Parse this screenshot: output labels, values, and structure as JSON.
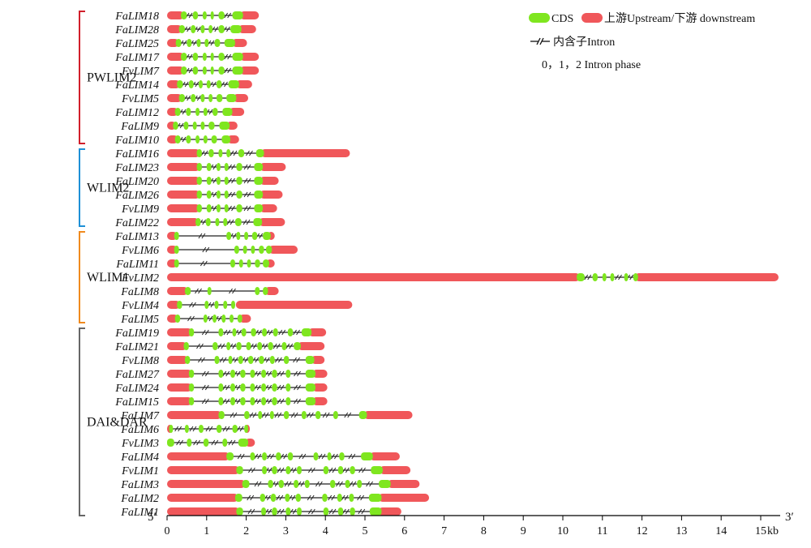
{
  "colors": {
    "cds": "#7FE61F",
    "utr": "#F0575A",
    "intron": "#222222",
    "axis": "#000000"
  },
  "legend": {
    "cds_label": "CDS",
    "utr_label": "上游Upstream/下游 downstream",
    "intron_label": "内含子Intron",
    "phase_label": "0，1，2 Intron phase"
  },
  "axis": {
    "five_prime": "5′",
    "three_prime": "3′",
    "unit": "kb",
    "ticks": [
      "0",
      "1",
      "2",
      "3",
      "4",
      "5",
      "6",
      "7",
      "8",
      "9",
      "10",
      "11",
      "12",
      "13",
      "14",
      "15"
    ]
  },
  "groups": [
    {
      "name": "PWLIM2",
      "color": "#D11F2B",
      "first": 0,
      "last": 9
    },
    {
      "name": "WLIM2",
      "color": "#1E90D6",
      "first": 10,
      "last": 15
    },
    {
      "name": "WLIM1",
      "color": "#F08A1E",
      "first": 16,
      "last": 22
    },
    {
      "name": "DAI&DAR",
      "color": "#666666",
      "first": 23,
      "last": 36
    }
  ],
  "genes": [
    {
      "name": "FaLIM18",
      "up": [
        0,
        0.35
      ],
      "cds": [
        [
          0.35,
          0.5
        ],
        [
          0.65,
          0.78
        ],
        [
          0.9,
          1.0
        ],
        [
          1.1,
          1.18
        ],
        [
          1.3,
          1.45
        ],
        [
          1.65,
          1.92
        ]
      ],
      "down": [
        1.92,
        2.32
      ]
    },
    {
      "name": "FaLIM28",
      "up": [
        0,
        0.3
      ],
      "cds": [
        [
          0.3,
          0.45
        ],
        [
          0.6,
          0.72
        ],
        [
          0.85,
          0.95
        ],
        [
          1.05,
          1.15
        ],
        [
          1.3,
          1.45
        ],
        [
          1.6,
          1.88
        ]
      ],
      "down": [
        1.88,
        2.25
      ]
    },
    {
      "name": "FaLIM25",
      "up": [
        0,
        0.22
      ],
      "cds": [
        [
          0.22,
          0.36
        ],
        [
          0.5,
          0.62
        ],
        [
          0.75,
          0.85
        ],
        [
          0.95,
          1.05
        ],
        [
          1.2,
          1.34
        ],
        [
          1.45,
          1.72
        ]
      ],
      "down": [
        1.72,
        2.02
      ]
    },
    {
      "name": "FaLIM17",
      "up": [
        0,
        0.35
      ],
      "cds": [
        [
          0.35,
          0.5
        ],
        [
          0.65,
          0.78
        ],
        [
          0.9,
          1.0
        ],
        [
          1.1,
          1.18
        ],
        [
          1.3,
          1.45
        ],
        [
          1.65,
          1.92
        ]
      ],
      "down": [
        1.92,
        2.32
      ]
    },
    {
      "name": "FvLIM7",
      "up": [
        0,
        0.35
      ],
      "cds": [
        [
          0.35,
          0.5
        ],
        [
          0.65,
          0.78
        ],
        [
          0.9,
          1.0
        ],
        [
          1.1,
          1.18
        ],
        [
          1.3,
          1.45
        ],
        [
          1.65,
          1.92
        ]
      ],
      "down": [
        1.92,
        2.32
      ]
    },
    {
      "name": "FaLIM14",
      "up": [
        0,
        0.25
      ],
      "cds": [
        [
          0.25,
          0.4
        ],
        [
          0.55,
          0.67
        ],
        [
          0.8,
          0.9
        ],
        [
          1.0,
          1.1
        ],
        [
          1.25,
          1.38
        ],
        [
          1.55,
          1.82
        ]
      ],
      "down": [
        1.82,
        2.15
      ]
    },
    {
      "name": "FvLIM5",
      "up": [
        0,
        0.3
      ],
      "cds": [
        [
          0.3,
          0.45
        ],
        [
          0.6,
          0.72
        ],
        [
          0.85,
          0.95
        ],
        [
          1.05,
          1.15
        ],
        [
          1.25,
          1.4
        ],
        [
          1.5,
          1.75
        ]
      ],
      "down": [
        1.75,
        2.05
      ]
    },
    {
      "name": "FaLIM12",
      "up": [
        0,
        0.2
      ],
      "cds": [
        [
          0.2,
          0.34
        ],
        [
          0.48,
          0.6
        ],
        [
          0.72,
          0.82
        ],
        [
          0.92,
          1.02
        ],
        [
          1.15,
          1.28
        ],
        [
          1.4,
          1.65
        ]
      ],
      "down": [
        1.65,
        1.95
      ]
    },
    {
      "name": "FaLIM9",
      "up": [
        0,
        0.15
      ],
      "cds": [
        [
          0.15,
          0.28
        ],
        [
          0.42,
          0.54
        ],
        [
          0.65,
          0.75
        ],
        [
          0.85,
          0.95
        ],
        [
          1.05,
          1.2
        ],
        [
          1.32,
          1.58
        ]
      ],
      "down": [
        1.58,
        1.78
      ]
    },
    {
      "name": "FaLIM10",
      "up": [
        0,
        0.2
      ],
      "cds": [
        [
          0.2,
          0.34
        ],
        [
          0.48,
          0.6
        ],
        [
          0.72,
          0.82
        ],
        [
          0.92,
          1.02
        ],
        [
          1.12,
          1.26
        ],
        [
          1.38,
          1.6
        ]
      ],
      "down": [
        1.6,
        1.82
      ]
    },
    {
      "name": "FaLIM16",
      "up": [
        0,
        0.75
      ],
      "cds": [
        [
          0.75,
          0.88
        ],
        [
          1.05,
          1.18
        ],
        [
          1.3,
          1.4
        ],
        [
          1.5,
          1.6
        ],
        [
          1.8,
          1.95
        ],
        [
          2.25,
          2.45
        ]
      ],
      "down": [
        2.45,
        4.62
      ]
    },
    {
      "name": "FaLIM23",
      "up": [
        0,
        0.75
      ],
      "cds": [
        [
          0.75,
          0.88
        ],
        [
          1.0,
          1.12
        ],
        [
          1.25,
          1.35
        ],
        [
          1.45,
          1.55
        ],
        [
          1.75,
          1.9
        ],
        [
          2.2,
          2.42
        ]
      ],
      "down": [
        2.42,
        3.0
      ]
    },
    {
      "name": "FaLIM20",
      "up": [
        0,
        0.75
      ],
      "cds": [
        [
          0.75,
          0.88
        ],
        [
          1.0,
          1.12
        ],
        [
          1.25,
          1.35
        ],
        [
          1.45,
          1.55
        ],
        [
          1.75,
          1.9
        ],
        [
          2.2,
          2.42
        ]
      ],
      "down": [
        2.42,
        2.82
      ]
    },
    {
      "name": "FaLIM26",
      "up": [
        0,
        0.75
      ],
      "cds": [
        [
          0.75,
          0.88
        ],
        [
          1.0,
          1.12
        ],
        [
          1.25,
          1.35
        ],
        [
          1.45,
          1.55
        ],
        [
          1.75,
          1.9
        ],
        [
          2.2,
          2.42
        ]
      ],
      "down": [
        2.42,
        2.92
      ]
    },
    {
      "name": "FvLIM9",
      "up": [
        0,
        0.75
      ],
      "cds": [
        [
          0.75,
          0.88
        ],
        [
          1.0,
          1.12
        ],
        [
          1.25,
          1.35
        ],
        [
          1.45,
          1.55
        ],
        [
          1.75,
          1.9
        ],
        [
          2.2,
          2.42
        ]
      ],
      "down": [
        2.42,
        2.78
      ]
    },
    {
      "name": "FaLIM22",
      "up": [
        0,
        0.72
      ],
      "cds": [
        [
          0.72,
          0.85
        ],
        [
          0.98,
          1.1
        ],
        [
          1.22,
          1.32
        ],
        [
          1.42,
          1.52
        ],
        [
          1.72,
          1.88
        ],
        [
          2.18,
          2.4
        ]
      ],
      "down": [
        2.4,
        2.98
      ]
    },
    {
      "name": "FaLIM13",
      "up": [
        0,
        0.18
      ],
      "cds": [
        [
          0.18,
          0.3
        ],
        [
          1.5,
          1.62
        ],
        [
          1.75,
          1.85
        ],
        [
          1.95,
          2.05
        ],
        [
          2.15,
          2.28
        ],
        [
          2.42,
          2.62
        ]
      ],
      "down": [
        2.62,
        2.72
      ]
    },
    {
      "name": "FvLIM6",
      "up": [
        0,
        0.18
      ],
      "cds": [
        [
          0.18,
          0.3
        ],
        [
          1.7,
          1.82
        ],
        [
          1.92,
          2.02
        ],
        [
          2.12,
          2.22
        ],
        [
          2.32,
          2.45
        ],
        [
          2.5,
          2.65
        ]
      ],
      "down": [
        2.65,
        3.3
      ]
    },
    {
      "name": "FaLIM11",
      "up": [
        0,
        0.18
      ],
      "cds": [
        [
          0.18,
          0.3
        ],
        [
          1.6,
          1.72
        ],
        [
          1.82,
          1.92
        ],
        [
          2.02,
          2.12
        ],
        [
          2.22,
          2.35
        ],
        [
          2.42,
          2.58
        ]
      ],
      "down": [
        2.58,
        2.72
      ]
    },
    {
      "name": "FvLIM2",
      "up": [
        0,
        10.35
      ],
      "cds": [
        [
          10.35,
          10.55
        ],
        [
          10.75,
          10.88
        ],
        [
          11.0,
          11.1
        ],
        [
          11.2,
          11.3
        ],
        [
          11.55,
          11.65
        ],
        [
          11.78,
          11.9
        ]
      ],
      "down": [
        11.9,
        15.45
      ]
    },
    {
      "name": "FaLIM8",
      "up": [
        0,
        0.45
      ],
      "cds": [
        [
          0.45,
          0.6
        ],
        [
          1.02,
          1.12
        ],
        [
          2.22,
          2.34
        ],
        [
          2.42,
          2.55
        ]
      ],
      "down": [
        2.55,
        2.82
      ]
    },
    {
      "name": "FvLIM4",
      "up": [
        0,
        0.25
      ],
      "cds": [
        [
          0.25,
          0.38
        ],
        [
          0.95,
          1.05
        ],
        [
          1.2,
          1.3
        ],
        [
          1.42,
          1.52
        ],
        [
          1.62,
          1.72
        ]
      ],
      "down": [
        1.82,
        4.68
      ]
    },
    {
      "name": "FaLIM5",
      "up": [
        0,
        0.2
      ],
      "cds": [
        [
          0.2,
          0.33
        ],
        [
          0.92,
          1.02
        ],
        [
          1.15,
          1.25
        ],
        [
          1.38,
          1.48
        ],
        [
          1.58,
          1.68
        ],
        [
          1.78,
          1.9
        ]
      ],
      "down": [
        1.9,
        2.12
      ]
    },
    {
      "name": "FaLIM19",
      "up": [
        0,
        0.55
      ],
      "cds": [
        [
          0.55,
          0.68
        ],
        [
          1.3,
          1.42
        ],
        [
          1.65,
          1.75
        ],
        [
          1.88,
          2.0
        ],
        [
          2.12,
          2.25
        ],
        [
          2.4,
          2.52
        ],
        [
          2.68,
          2.8
        ],
        [
          3.05,
          3.18
        ],
        [
          3.4,
          3.65
        ]
      ],
      "down": [
        3.65,
        4.02
      ]
    },
    {
      "name": "FaLIM21",
      "up": [
        0,
        0.42
      ],
      "cds": [
        [
          0.42,
          0.55
        ],
        [
          1.15,
          1.28
        ],
        [
          1.5,
          1.6
        ],
        [
          1.75,
          1.88
        ],
        [
          2.0,
          2.12
        ],
        [
          2.28,
          2.4
        ],
        [
          2.55,
          2.68
        ],
        [
          2.9,
          3.02
        ],
        [
          3.2,
          3.38
        ]
      ],
      "down": [
        3.38,
        3.98
      ]
    },
    {
      "name": "FvLIM8",
      "up": [
        0,
        0.45
      ],
      "cds": [
        [
          0.45,
          0.58
        ],
        [
          1.2,
          1.32
        ],
        [
          1.55,
          1.65
        ],
        [
          1.8,
          1.92
        ],
        [
          2.05,
          2.18
        ],
        [
          2.32,
          2.45
        ],
        [
          2.6,
          2.72
        ],
        [
          2.95,
          3.08
        ],
        [
          3.5,
          3.72
        ]
      ],
      "down": [
        3.72,
        3.98
      ]
    },
    {
      "name": "FaLIM27",
      "up": [
        0,
        0.55
      ],
      "cds": [
        [
          0.55,
          0.68
        ],
        [
          1.3,
          1.42
        ],
        [
          1.6,
          1.72
        ],
        [
          1.85,
          1.98
        ],
        [
          2.1,
          2.22
        ],
        [
          2.38,
          2.5
        ],
        [
          2.65,
          2.78
        ],
        [
          3.0,
          3.12
        ],
        [
          3.5,
          3.75
        ]
      ],
      "down": [
        3.75,
        4.05
      ]
    },
    {
      "name": "FaLIM24",
      "up": [
        0,
        0.55
      ],
      "cds": [
        [
          0.55,
          0.68
        ],
        [
          1.3,
          1.42
        ],
        [
          1.6,
          1.72
        ],
        [
          1.85,
          1.98
        ],
        [
          2.1,
          2.22
        ],
        [
          2.38,
          2.5
        ],
        [
          2.65,
          2.78
        ],
        [
          3.0,
          3.12
        ],
        [
          3.5,
          3.75
        ]
      ],
      "down": [
        3.75,
        4.05
      ]
    },
    {
      "name": "FaLIM15",
      "up": [
        0,
        0.55
      ],
      "cds": [
        [
          0.55,
          0.68
        ],
        [
          1.3,
          1.42
        ],
        [
          1.6,
          1.72
        ],
        [
          1.85,
          1.98
        ],
        [
          2.1,
          2.22
        ],
        [
          2.38,
          2.5
        ],
        [
          2.65,
          2.78
        ],
        [
          3.0,
          3.12
        ],
        [
          3.5,
          3.75
        ]
      ],
      "down": [
        3.75,
        4.05
      ]
    },
    {
      "name": "FaLIM7",
      "up": [
        0,
        1.3
      ],
      "cds": [
        [
          1.3,
          1.45
        ],
        [
          1.95,
          2.08
        ],
        [
          2.3,
          2.4
        ],
        [
          2.6,
          2.7
        ],
        [
          2.95,
          3.08
        ],
        [
          3.4,
          3.52
        ],
        [
          3.75,
          3.88
        ],
        [
          4.2,
          4.32
        ],
        [
          4.85,
          5.05
        ]
      ],
      "down": [
        5.05,
        6.2
      ]
    },
    {
      "name": "FaLIM6",
      "up": [
        0,
        0.05
      ],
      "cds": [
        [
          0.05,
          0.15
        ],
        [
          0.45,
          0.55
        ],
        [
          0.8,
          0.92
        ],
        [
          1.25,
          1.38
        ],
        [
          1.65,
          1.78
        ],
        [
          1.95,
          2.05
        ]
      ],
      "down": [
        2.05,
        2.08
      ]
    },
    {
      "name": "FvLIM3",
      "up": [
        0,
        0
      ],
      "cds": [
        [
          0,
          0.18
        ],
        [
          0.5,
          0.62
        ],
        [
          0.92,
          1.05
        ],
        [
          1.4,
          1.52
        ],
        [
          1.8,
          2.05
        ]
      ],
      "down": [
        2.05,
        2.22
      ]
    },
    {
      "name": "FaLIM4",
      "up": [
        0,
        1.5
      ],
      "cds": [
        [
          1.5,
          1.68
        ],
        [
          2.1,
          2.22
        ],
        [
          2.4,
          2.52
        ],
        [
          2.75,
          2.88
        ],
        [
          3.05,
          3.18
        ],
        [
          3.7,
          3.82
        ],
        [
          4.05,
          4.15
        ],
        [
          4.35,
          4.48
        ],
        [
          4.9,
          5.2
        ]
      ],
      "down": [
        5.2,
        5.88
      ]
    },
    {
      "name": "FvLIM1",
      "up": [
        0,
        1.75
      ],
      "cds": [
        [
          1.75,
          1.92
        ],
        [
          2.4,
          2.52
        ],
        [
          2.65,
          2.78
        ],
        [
          3.0,
          3.12
        ],
        [
          3.28,
          3.4
        ],
        [
          3.95,
          4.08
        ],
        [
          4.32,
          4.45
        ],
        [
          4.62,
          4.75
        ],
        [
          5.15,
          5.45
        ]
      ],
      "down": [
        5.45,
        6.15
      ]
    },
    {
      "name": "FaLIM3",
      "up": [
        0,
        1.9
      ],
      "cds": [
        [
          1.9,
          2.08
        ],
        [
          2.55,
          2.68
        ],
        [
          2.82,
          2.95
        ],
        [
          3.2,
          3.32
        ],
        [
          3.48,
          3.6
        ],
        [
          4.12,
          4.25
        ],
        [
          4.5,
          4.62
        ],
        [
          4.8,
          4.92
        ],
        [
          5.35,
          5.65
        ]
      ],
      "down": [
        5.65,
        6.38
      ]
    },
    {
      "name": "FaLIM2",
      "up": [
        0,
        1.72
      ],
      "cds": [
        [
          1.72,
          1.9
        ],
        [
          2.35,
          2.48
        ],
        [
          2.62,
          2.75
        ],
        [
          2.98,
          3.1
        ],
        [
          3.25,
          3.38
        ],
        [
          3.92,
          4.05
        ],
        [
          4.3,
          4.42
        ],
        [
          4.6,
          4.72
        ],
        [
          5.1,
          5.42
        ]
      ],
      "down": [
        5.42,
        6.62
      ]
    },
    {
      "name": "FaLIM1",
      "up": [
        0,
        1.75
      ],
      "cds": [
        [
          1.75,
          1.92
        ],
        [
          2.38,
          2.5
        ],
        [
          2.65,
          2.78
        ],
        [
          3.0,
          3.12
        ],
        [
          3.28,
          3.4
        ],
        [
          3.95,
          4.08
        ],
        [
          4.32,
          4.45
        ],
        [
          4.62,
          4.75
        ],
        [
          5.12,
          5.42
        ]
      ],
      "down": [
        5.42,
        5.92
      ]
    }
  ]
}
